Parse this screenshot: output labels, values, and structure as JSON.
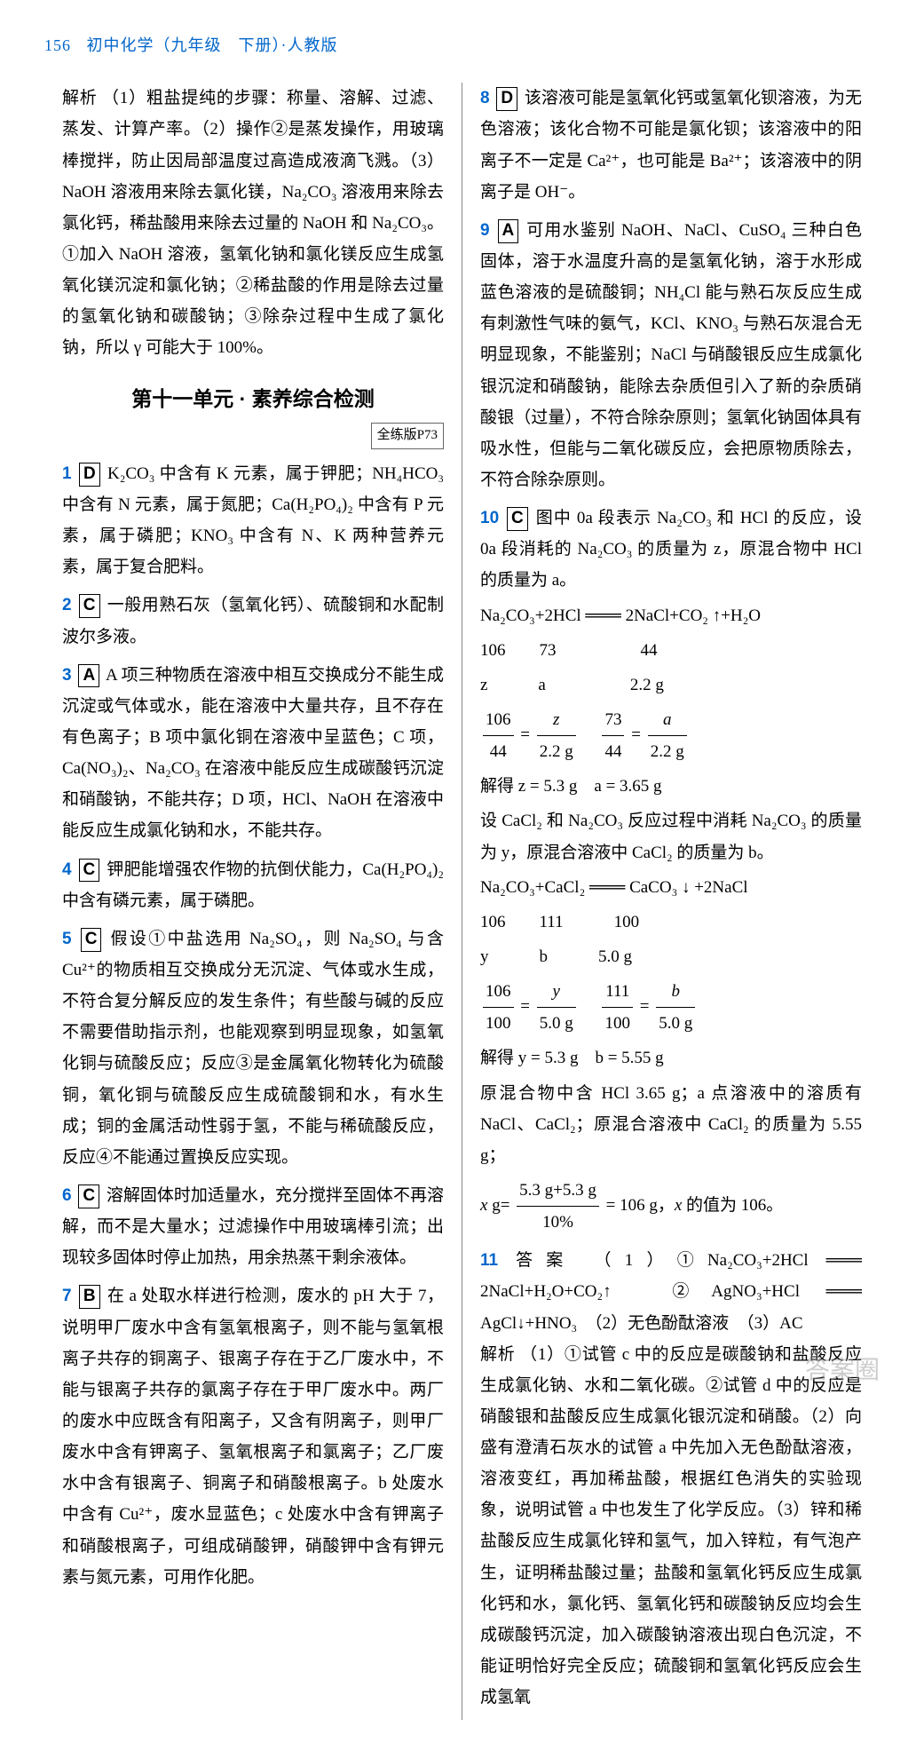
{
  "header": {
    "page_num": "156",
    "title": "初中化学（九年级　下册）·人教版"
  },
  "section_title": "第十一单元 · 素养综合检测",
  "page_ref": "全练版P73",
  "left_column": {
    "analysis_intro": {
      "label": "解析",
      "text": "（1）粗盐提纯的步骤：称量、溶解、过滤、蒸发、计算产率。（2）操作②是蒸发操作，用玻璃棒搅拌，防止因局部温度过高造成液滴飞溅。（3）NaOH 溶液用来除去氯化镁，Na₂CO₃ 溶液用来除去氯化钙，稀盐酸用来除去过量的 NaOH 和 Na₂CO₃。①加入 NaOH 溶液，氢氧化钠和氯化镁反应生成氢氧化镁沉淀和氯化钠；②稀盐酸的作用是除去过量的氢氧化钠和碳酸钠；③除杂过程中生成了氯化钠，所以 γ 可能大于 100%。"
    },
    "items": [
      {
        "num": "1",
        "answer": "D",
        "text": "K₂CO₃ 中含有 K 元素，属于钾肥；NH₄HCO₃ 中含有 N 元素，属于氮肥；Ca(H₂PO₄)₂ 中含有 P 元素，属于磷肥；KNO₃ 中含有 N、K 两种营养元素，属于复合肥料。"
      },
      {
        "num": "2",
        "answer": "C",
        "text": "一般用熟石灰（氢氧化钙）、硫酸铜和水配制波尔多液。"
      },
      {
        "num": "3",
        "answer": "A",
        "text": "A 项三种物质在溶液中相互交换成分不能生成沉淀或气体或水，能在溶液中大量共存，且不存在有色离子；B 项中氯化铜在溶液中呈蓝色；C 项，Ca(NO₃)₂、Na₂CO₃ 在溶液中能反应生成碳酸钙沉淀和硝酸钠，不能共存；D 项，HCl、NaOH 在溶液中能反应生成氯化钠和水，不能共存。"
      },
      {
        "num": "4",
        "answer": "C",
        "text": "钾肥能增强农作物的抗倒伏能力，Ca(H₂PO₄)₂ 中含有磷元素，属于磷肥。"
      },
      {
        "num": "5",
        "answer": "C",
        "text": "假设①中盐选用 Na₂SO₄，则 Na₂SO₄ 与含 Cu²⁺的物质相互交换成分无沉淀、气体或水生成，不符合复分解反应的发生条件；有些酸与碱的反应不需要借助指示剂，也能观察到明显现象，如氢氧化铜与硫酸反应；反应③是金属氧化物转化为硫酸铜，氧化铜与硫酸反应生成硫酸铜和水，有水生成；铜的金属活动性弱于氢，不能与稀硫酸反应，反应④不能通过置换反应实现。"
      },
      {
        "num": "6",
        "answer": "C",
        "text": "溶解固体时加适量水，充分搅拌至固体不再溶解，而不是大量水；过滤操作中用玻璃棒引流；出现较多固体时停止加热，用余热蒸干剩余液体。"
      },
      {
        "num": "7",
        "answer": "B",
        "text": "在 a 处取水样进行检测，废水的 pH 大于 7，说明甲厂废水中含有氢氧根离子，则不能与氢氧根离子共存的铜离子、银离子存在于乙厂废水中，不能与银离子共存的氯离子存在于甲厂废水中。两厂的废水中应既含有阳离子，又含有阴离子，则甲厂废水中含有钾离子、氢氧根离子和氯离子；乙厂废水中含有银离子、铜离子和硝酸根离子。b 处废水中含有 Cu²⁺，废水显蓝色；c 处废水中含有钾离子和硝酸根离子，可组成硝酸钾，硝酸钾中含有钾元素与氮元素，可用作化肥。"
      }
    ]
  },
  "right_column": {
    "items": [
      {
        "num": "8",
        "answer": "D",
        "text": "该溶液可能是氢氧化钙或氢氧化钡溶液，为无色溶液；该化合物不可能是氯化钡；该溶液中的阳离子不一定是 Ca²⁺，也可能是 Ba²⁺；该溶液中的阴离子是 OH⁻。"
      },
      {
        "num": "9",
        "answer": "A",
        "text": "可用水鉴别 NaOH、NaCl、CuSO₄ 三种白色固体，溶于水温度升高的是氢氧化钠，溶于水形成蓝色溶液的是硫酸铜；NH₄Cl 能与熟石灰反应生成有刺激性气味的氨气，KCl、KNO₃ 与熟石灰混合无明显现象，不能鉴别；NaCl 与硝酸银反应生成氯化银沉淀和硝酸钠，能除去杂质但引入了新的杂质硝酸银（过量），不符合除杂原则；氢氧化钠固体具有吸水性，但能与二氧化碳反应，会把原物质除去，不符合除杂原则。"
      },
      {
        "num": "10",
        "answer": "C",
        "text_intro": "图中 0a 段表示 Na₂CO₃ 和 HCl 的反应，设 0a 段消耗的 Na₂CO₃ 的质量为 z，原混合物中 HCl 的质量为 a。",
        "eq1": "Na₂CO₃+2HCl ═══ 2NaCl+CO₂ ↑+H₂O",
        "eq2_left": "106　　73",
        "eq2_right": "44",
        "eq3_left": "z　　　a",
        "eq3_right": "2.2 g",
        "frac1": "106/44 = z/2.2 g　73/44 = a/2.2 g",
        "solve1": "解得 z = 5.3 g　a = 3.65 g",
        "text_mid": "设 CaCl₂ 和 Na₂CO₃ 反应过程中消耗 Na₂CO₃ 的质量为 y，原混合溶液中 CaCl₂ 的质量为 b。",
        "eq4": "Na₂CO₃+CaCl₂ ═══ CaCO₃ ↓ +2NaCl",
        "eq5_left": "106　　111",
        "eq5_right": "100",
        "eq6_left": "y　　　b",
        "eq6_right": "5.0 g",
        "frac2": "106/100 = y/5.0 g　111/100 = b/5.0 g",
        "solve2": "解得 y = 5.3 g　b = 5.55 g",
        "text_end": "原混合物中含 HCl 3.65 g；a 点溶液中的溶质有 NaCl、CaCl₂；原混合溶液中 CaCl₂ 的质量为 5.55 g；",
        "final": "x g= (5.3 g+5.3 g)/10% = 106 g，x 的值为 106。"
      },
      {
        "num": "11",
        "answer_label": "答案",
        "answer_text": "（1）①Na₂CO₃+2HCl ═══ 2NaCl+H₂O+CO₂↑　②AgNO₃+HCl ═══ AgCl↓+HNO₃　（2）无色酚酞溶液　（3）AC",
        "analysis_label": "解析",
        "analysis_text": "（1）①试管 c 中的反应是碳酸钠和盐酸反应生成氯化钠、水和二氧化碳。②试管 d 中的反应是硝酸银和盐酸反应生成氯化银沉淀和硝酸。（2）向盛有澄清石灰水的试管 a 中先加入无色酚酞溶液，溶液变红，再加稀盐酸，根据红色消失的实验现象，说明试管 a 中也发生了化学反应。（3）锌和稀盐酸反应生成氯化锌和氢气，加入锌粒，有气泡产生，证明稀盐酸过量；盐酸和氢氧化钙反应生成氯化钙和水，氯化钙、氢氧化钙和碳酸钠反应均会生成碳酸钙沉淀，加入碳酸钠溶液出现白色沉淀，不能证明恰好完全反应；硫酸铜和氢氧化钙反应会生成氢氧"
      }
    ]
  },
  "watermark": "答案圈"
}
